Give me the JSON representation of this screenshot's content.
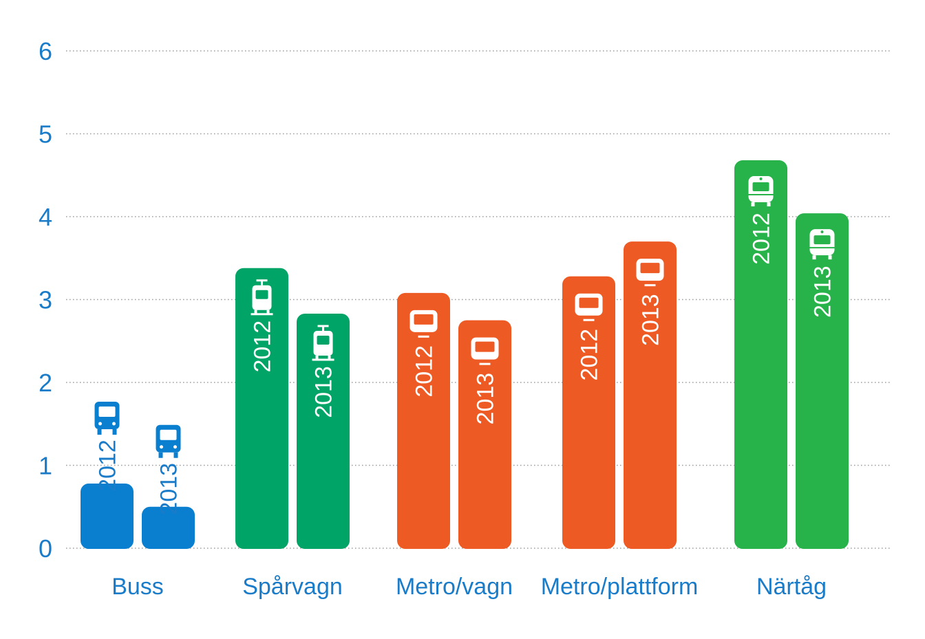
{
  "chart_data": {
    "type": "bar",
    "categories": [
      "Buss",
      "Spårvagn",
      "Metro/vagn",
      "Metro/plattform",
      "Närtåg"
    ],
    "category_icons": [
      "bus-icon",
      "tram-icon",
      "metro-icon",
      "metro-icon",
      "train-icon"
    ],
    "category_colors": [
      "#0a7fcf",
      "#00a466",
      "#ee5a24",
      "#ee5a24",
      "#27b24a"
    ],
    "series": [
      {
        "label": "2012",
        "values": [
          0.78,
          3.38,
          3.08,
          3.28,
          4.68
        ]
      },
      {
        "label": "2013",
        "values": [
          0.5,
          2.83,
          2.75,
          3.7,
          4.04
        ]
      }
    ],
    "ylim": [
      0,
      6
    ],
    "yticks": [
      "0",
      "1",
      "2",
      "3",
      "4",
      "5",
      "6"
    ],
    "grid": true,
    "axis_color": "#1a7cc9",
    "grid_color": "#9a9a9a"
  }
}
